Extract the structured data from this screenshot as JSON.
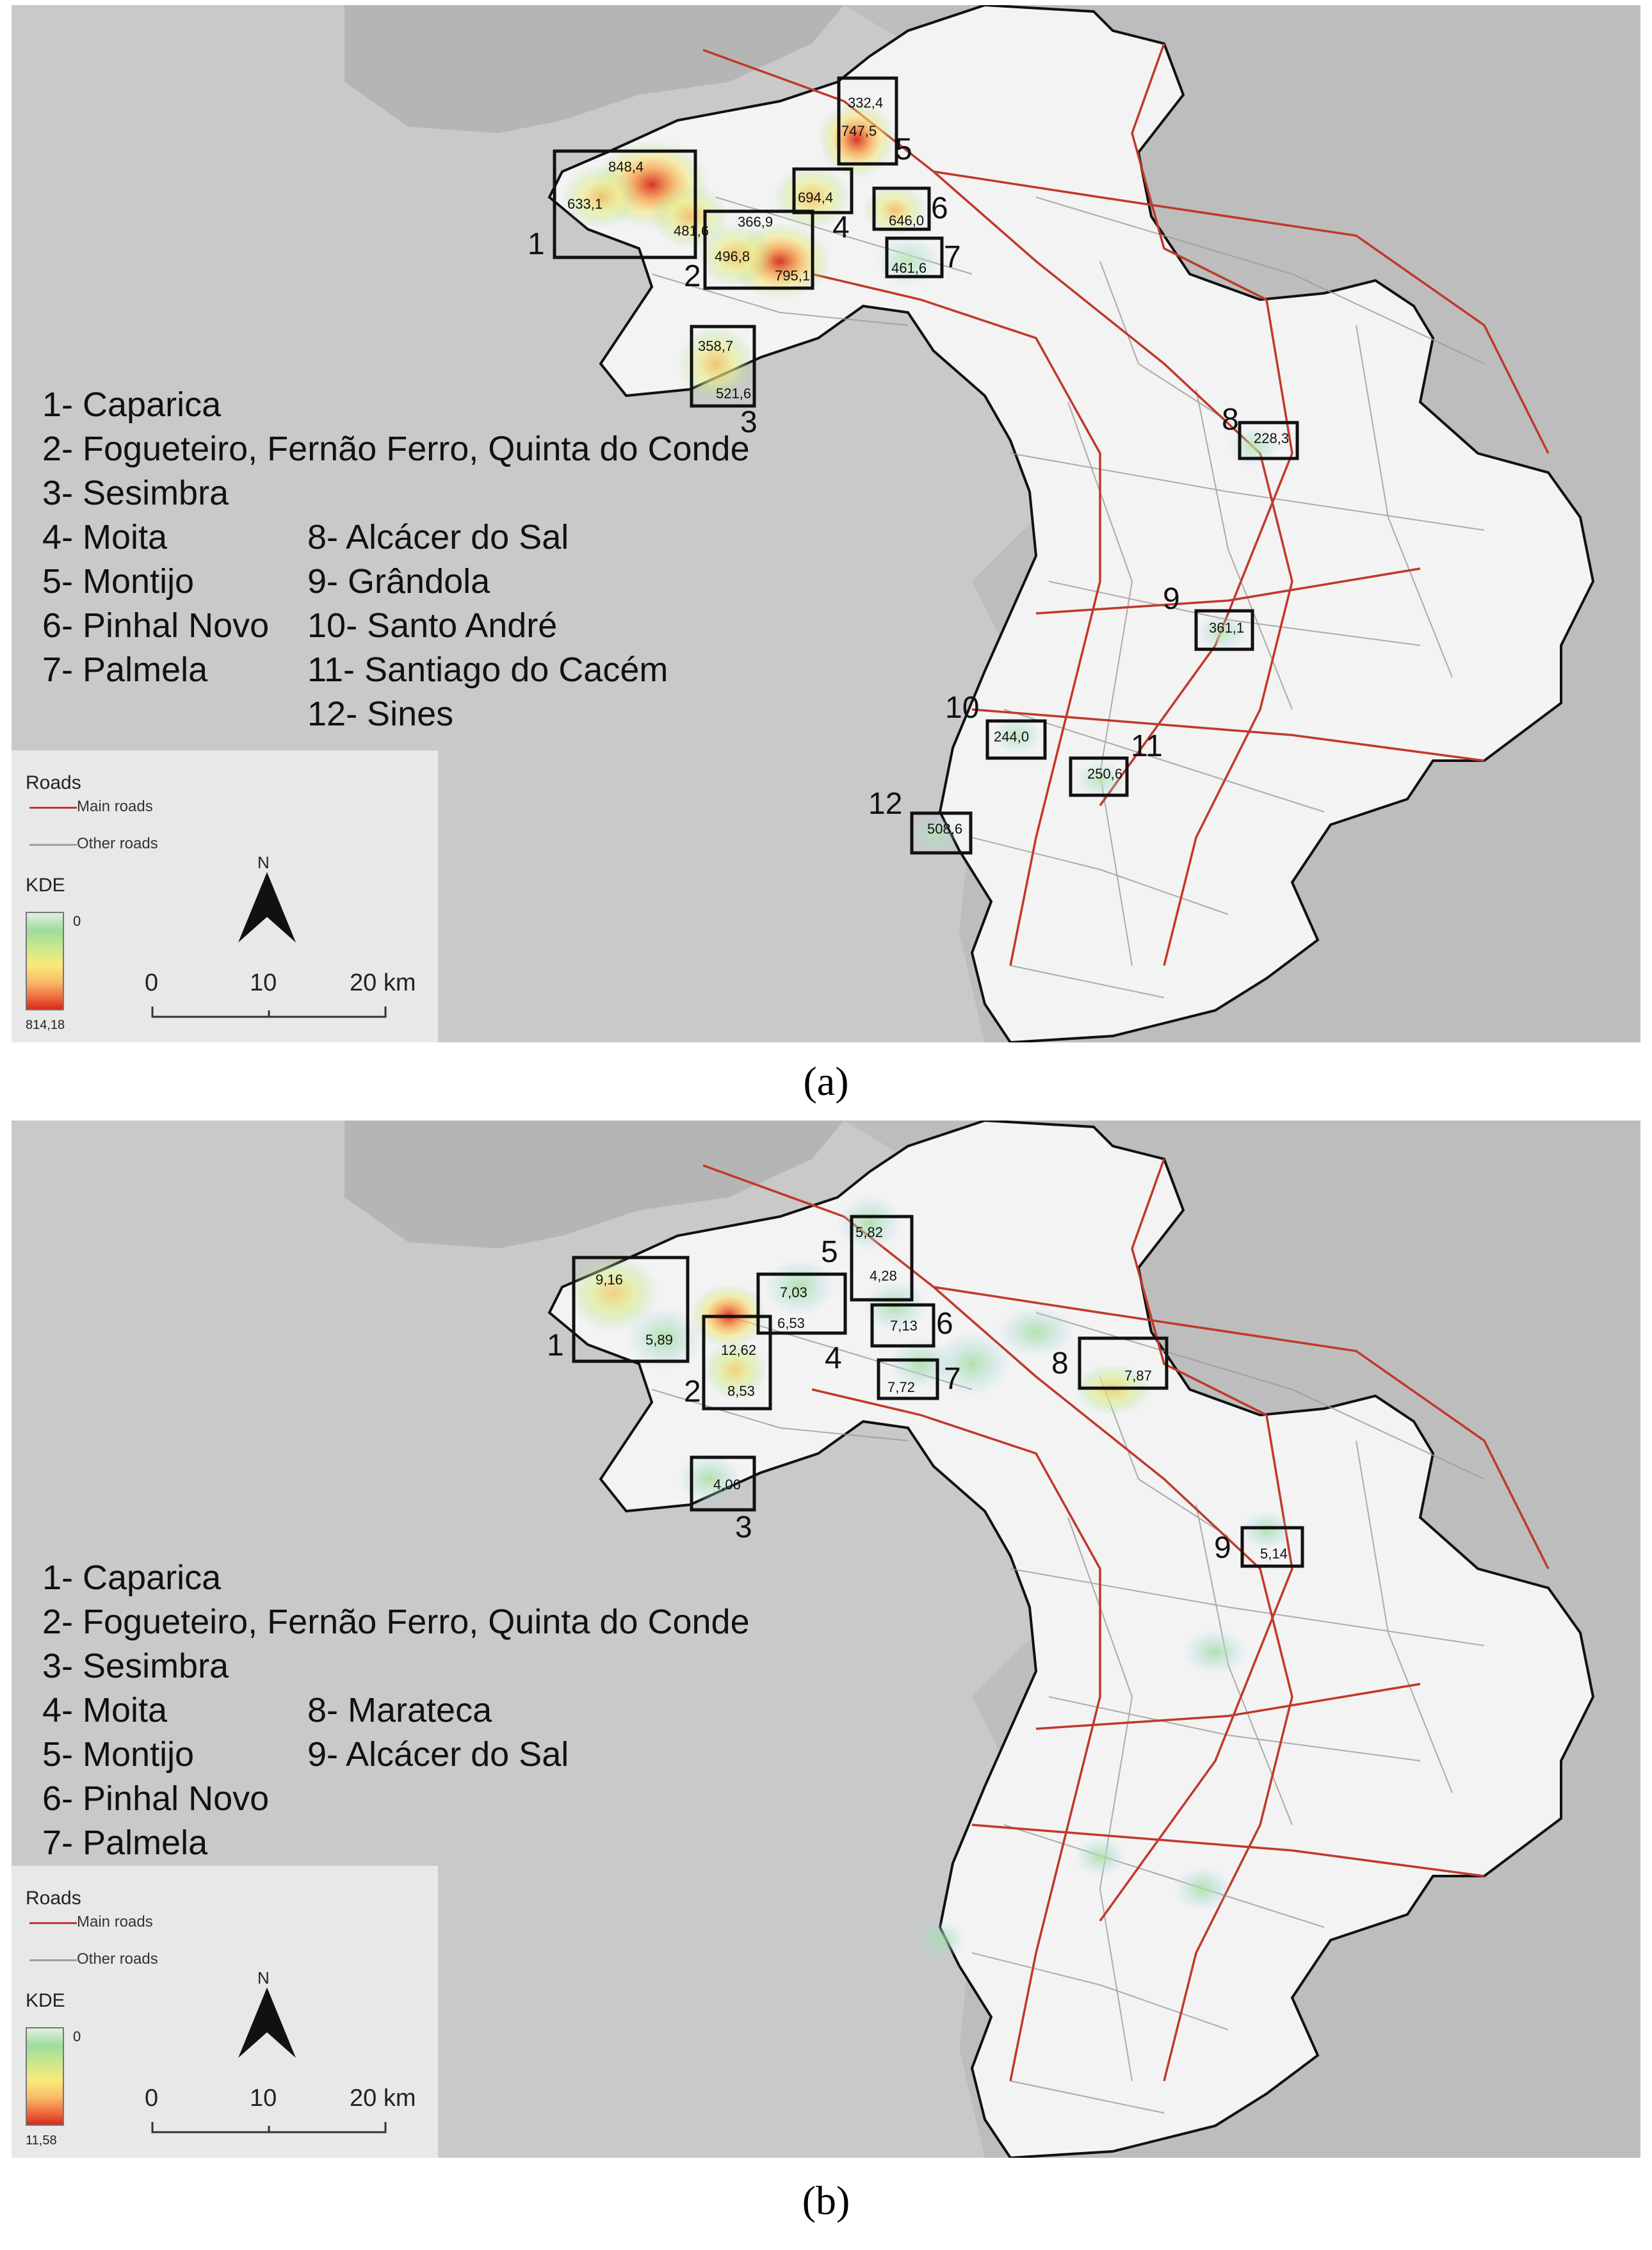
{
  "panel_a": {
    "caption": "(a)",
    "legend_list_left": [
      "1- Caparica",
      "2- Fogueteiro, Fernão Ferro, Quinta do Conde",
      "3- Sesimbra",
      "4- Moita",
      "5- Montijo",
      "6- Pinhal Novo",
      "7- Palmela"
    ],
    "legend_list_right": [
      "8- Alcácer do Sal",
      "9- Grândola",
      "10- Santo André",
      "11- Santiago do Cacém",
      "12- Sines"
    ],
    "box_labels": [
      "1",
      "2",
      "3",
      "4",
      "5",
      "6",
      "7",
      "8",
      "9",
      "10",
      "11",
      "12"
    ],
    "values": [
      "848,4",
      "633,1",
      "481,6",
      "366,9",
      "496,8",
      "795,1",
      "358,7",
      "521,6",
      "694,4",
      "332,4",
      "747,5",
      "646,0",
      "461,6",
      "228,3",
      "361,1",
      "244,0",
      "250,6",
      "508,6"
    ],
    "legend": {
      "roads_title": "Roads",
      "main_roads": "Main roads",
      "other_roads": "Other roads",
      "kde_title": "KDE",
      "kde_min": "0",
      "kde_max": "814,18",
      "north": "N",
      "scale": [
        "0",
        "10",
        "20 km"
      ]
    }
  },
  "panel_b": {
    "caption": "(b)",
    "legend_list_left": [
      "1- Caparica",
      "2- Fogueteiro, Fernão Ferro, Quinta do Conde",
      "3- Sesimbra",
      "4- Moita",
      "5- Montijo",
      "6- Pinhal Novo",
      "7- Palmela"
    ],
    "legend_list_right": [
      "8- Marateca",
      "9- Alcácer do Sal"
    ],
    "box_labels": [
      "1",
      "2",
      "3",
      "4",
      "5",
      "6",
      "7",
      "8",
      "9"
    ],
    "values": [
      "9,16",
      "5,89",
      "12,62",
      "8,53",
      "4,06",
      "7,03",
      "6,53",
      "5,82",
      "4,28",
      "7,13",
      "7,72",
      "7,87",
      "5,14"
    ],
    "legend": {
      "roads_title": "Roads",
      "main_roads": "Main roads",
      "other_roads": "Other roads",
      "kde_title": "KDE",
      "kde_min": "0",
      "kde_max": "11,58",
      "north": "N",
      "scale": [
        "0",
        "10",
        "20 km"
      ]
    }
  },
  "colors": {
    "sea": "#c9c9c9",
    "land_outside": "#bdbdbd",
    "study_area": "#f3f3f3",
    "main_road": "#c0392b",
    "other_road": "#9a9a9a",
    "boundary": "#111111",
    "box": "#111111"
  }
}
